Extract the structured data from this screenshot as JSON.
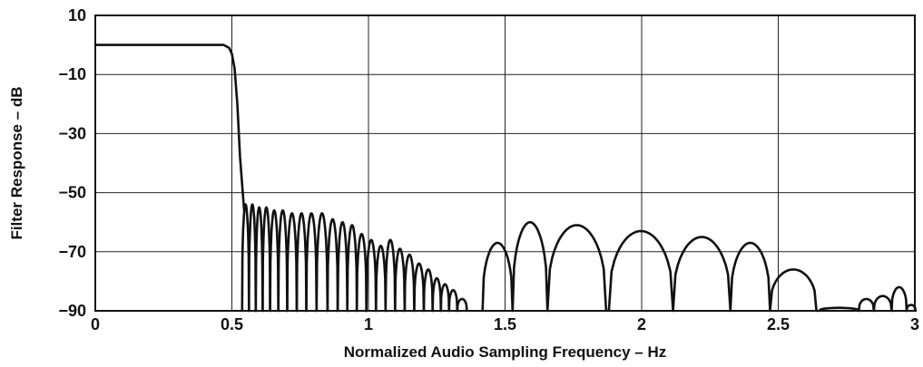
{
  "chart_data": {
    "type": "line",
    "title": "",
    "xlabel": "Normalized Audio Sampling Frequency – Hz",
    "ylabel": "Filter Response – dB",
    "xlim": [
      0,
      3
    ],
    "ylim": [
      -90,
      10
    ],
    "x_ticks": [
      0,
      0.5,
      1,
      1.5,
      2,
      2.5,
      3
    ],
    "x_tick_labels": [
      "0",
      "0.5",
      "1",
      "1.5",
      "2",
      "2.5",
      "3"
    ],
    "y_ticks": [
      10,
      -10,
      -30,
      -50,
      -70,
      -90
    ],
    "y_tick_labels": [
      "10",
      "−10",
      "−30",
      "−50",
      "−70",
      "−90"
    ],
    "grid": true,
    "legend": "none",
    "series": [
      {
        "passband": {
          "x_start": 0,
          "x_end": 0.47,
          "level_db": 0
        },
        "transition": [
          [
            0.47,
            0
          ],
          [
            0.49,
            -1
          ],
          [
            0.5,
            -3
          ],
          [
            0.51,
            -8
          ],
          [
            0.52,
            -20
          ],
          [
            0.53,
            -38
          ],
          [
            0.545,
            -56
          ]
        ],
        "stopband_lobes": [
          {
            "x": 0.55,
            "peak_db": -54
          },
          {
            "x": 0.575,
            "peak_db": -54
          },
          {
            "x": 0.6,
            "peak_db": -55
          },
          {
            "x": 0.625,
            "peak_db": -55
          },
          {
            "x": 0.655,
            "peak_db": -56
          },
          {
            "x": 0.685,
            "peak_db": -56
          },
          {
            "x": 0.72,
            "peak_db": -57
          },
          {
            "x": 0.755,
            "peak_db": -57
          },
          {
            "x": 0.79,
            "peak_db": -57
          },
          {
            "x": 0.83,
            "peak_db": -57
          },
          {
            "x": 0.87,
            "peak_db": -59
          },
          {
            "x": 0.905,
            "peak_db": -60
          },
          {
            "x": 0.94,
            "peak_db": -61
          },
          {
            "x": 0.975,
            "peak_db": -64
          },
          {
            "x": 1.01,
            "peak_db": -66
          },
          {
            "x": 1.045,
            "peak_db": -68
          },
          {
            "x": 1.08,
            "peak_db": -66
          },
          {
            "x": 1.115,
            "peak_db": -69
          },
          {
            "x": 1.15,
            "peak_db": -71
          },
          {
            "x": 1.185,
            "peak_db": -74
          },
          {
            "x": 1.22,
            "peak_db": -76
          },
          {
            "x": 1.25,
            "peak_db": -79
          },
          {
            "x": 1.28,
            "peak_db": -81
          },
          {
            "x": 1.31,
            "peak_db": -83
          },
          {
            "x": 1.34,
            "peak_db": -86
          },
          {
            "x": 1.495,
            "peak_db": -67
          },
          {
            "x": 1.56,
            "peak_db": -60
          },
          {
            "x": 1.75,
            "peak_db": -61
          },
          {
            "x": 2.0,
            "peak_db": -63
          },
          {
            "x": 2.23,
            "peak_db": -65
          },
          {
            "x": 2.42,
            "peak_db": -67
          },
          {
            "x": 2.52,
            "peak_db": -76
          },
          {
            "x": 2.77,
            "peak_db": -89
          },
          {
            "x": 2.82,
            "peak_db": -86
          },
          {
            "x": 2.88,
            "peak_db": -85
          },
          {
            "x": 2.95,
            "peak_db": -82
          },
          {
            "x": 2.99,
            "peak_db": -88
          }
        ]
      }
    ]
  }
}
